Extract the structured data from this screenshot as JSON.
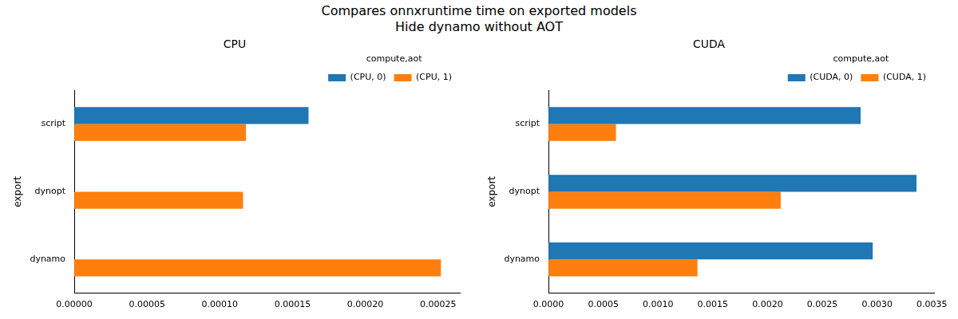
{
  "title": "Compares onnxruntime time on exported models",
  "subtitle": "Hide dynamo without AOT",
  "chart_data": [
    {
      "type": "bar",
      "orientation": "horizontal",
      "title": "CPU",
      "y_label": "export",
      "categories": [
        "dynamo",
        "dynopt",
        "script"
      ],
      "legend_title": "compute,aot",
      "legend": "upper right",
      "grid": false,
      "series": [
        {
          "name": "(CPU, 0)",
          "color": "#1f77b4",
          "values": [
            null,
            null,
            0.000161
          ]
        },
        {
          "name": "(CPU, 1)",
          "color": "#ff7f0e",
          "values": [
            0.000252,
            0.000116,
            0.000118
          ]
        }
      ],
      "xlim": [
        0,
        0.000265
      ],
      "xticks": [
        {
          "value": 0,
          "label": "0.00000"
        },
        {
          "value": 5e-05,
          "label": "0.00005"
        },
        {
          "value": 0.0001,
          "label": "0.00010"
        },
        {
          "value": 0.00015,
          "label": "0.00015"
        },
        {
          "value": 0.0002,
          "label": "0.00020"
        },
        {
          "value": 0.00025,
          "label": "0.00025"
        }
      ]
    },
    {
      "type": "bar",
      "orientation": "horizontal",
      "title": "CUDA",
      "y_label": "export",
      "categories": [
        "dynamo",
        "dynopt",
        "script"
      ],
      "legend_title": "compute,aot",
      "legend": "upper right",
      "grid": false,
      "series": [
        {
          "name": "(CUDA, 0)",
          "color": "#1f77b4",
          "values": [
            0.00296,
            0.00336,
            0.00285
          ]
        },
        {
          "name": "(CUDA, 1)",
          "color": "#ff7f0e",
          "values": [
            0.00136,
            0.00212,
            0.000616
          ]
        }
      ],
      "xlim": [
        0,
        0.00352
      ],
      "xticks": [
        {
          "value": 0,
          "label": "0.0000"
        },
        {
          "value": 0.0005,
          "label": "0.0005"
        },
        {
          "value": 0.001,
          "label": "0.0010"
        },
        {
          "value": 0.0015,
          "label": "0.0015"
        },
        {
          "value": 0.002,
          "label": "0.0020"
        },
        {
          "value": 0.0025,
          "label": "0.0025"
        },
        {
          "value": 0.003,
          "label": "0.0030"
        },
        {
          "value": 0.0035,
          "label": "0.0035"
        }
      ]
    }
  ]
}
